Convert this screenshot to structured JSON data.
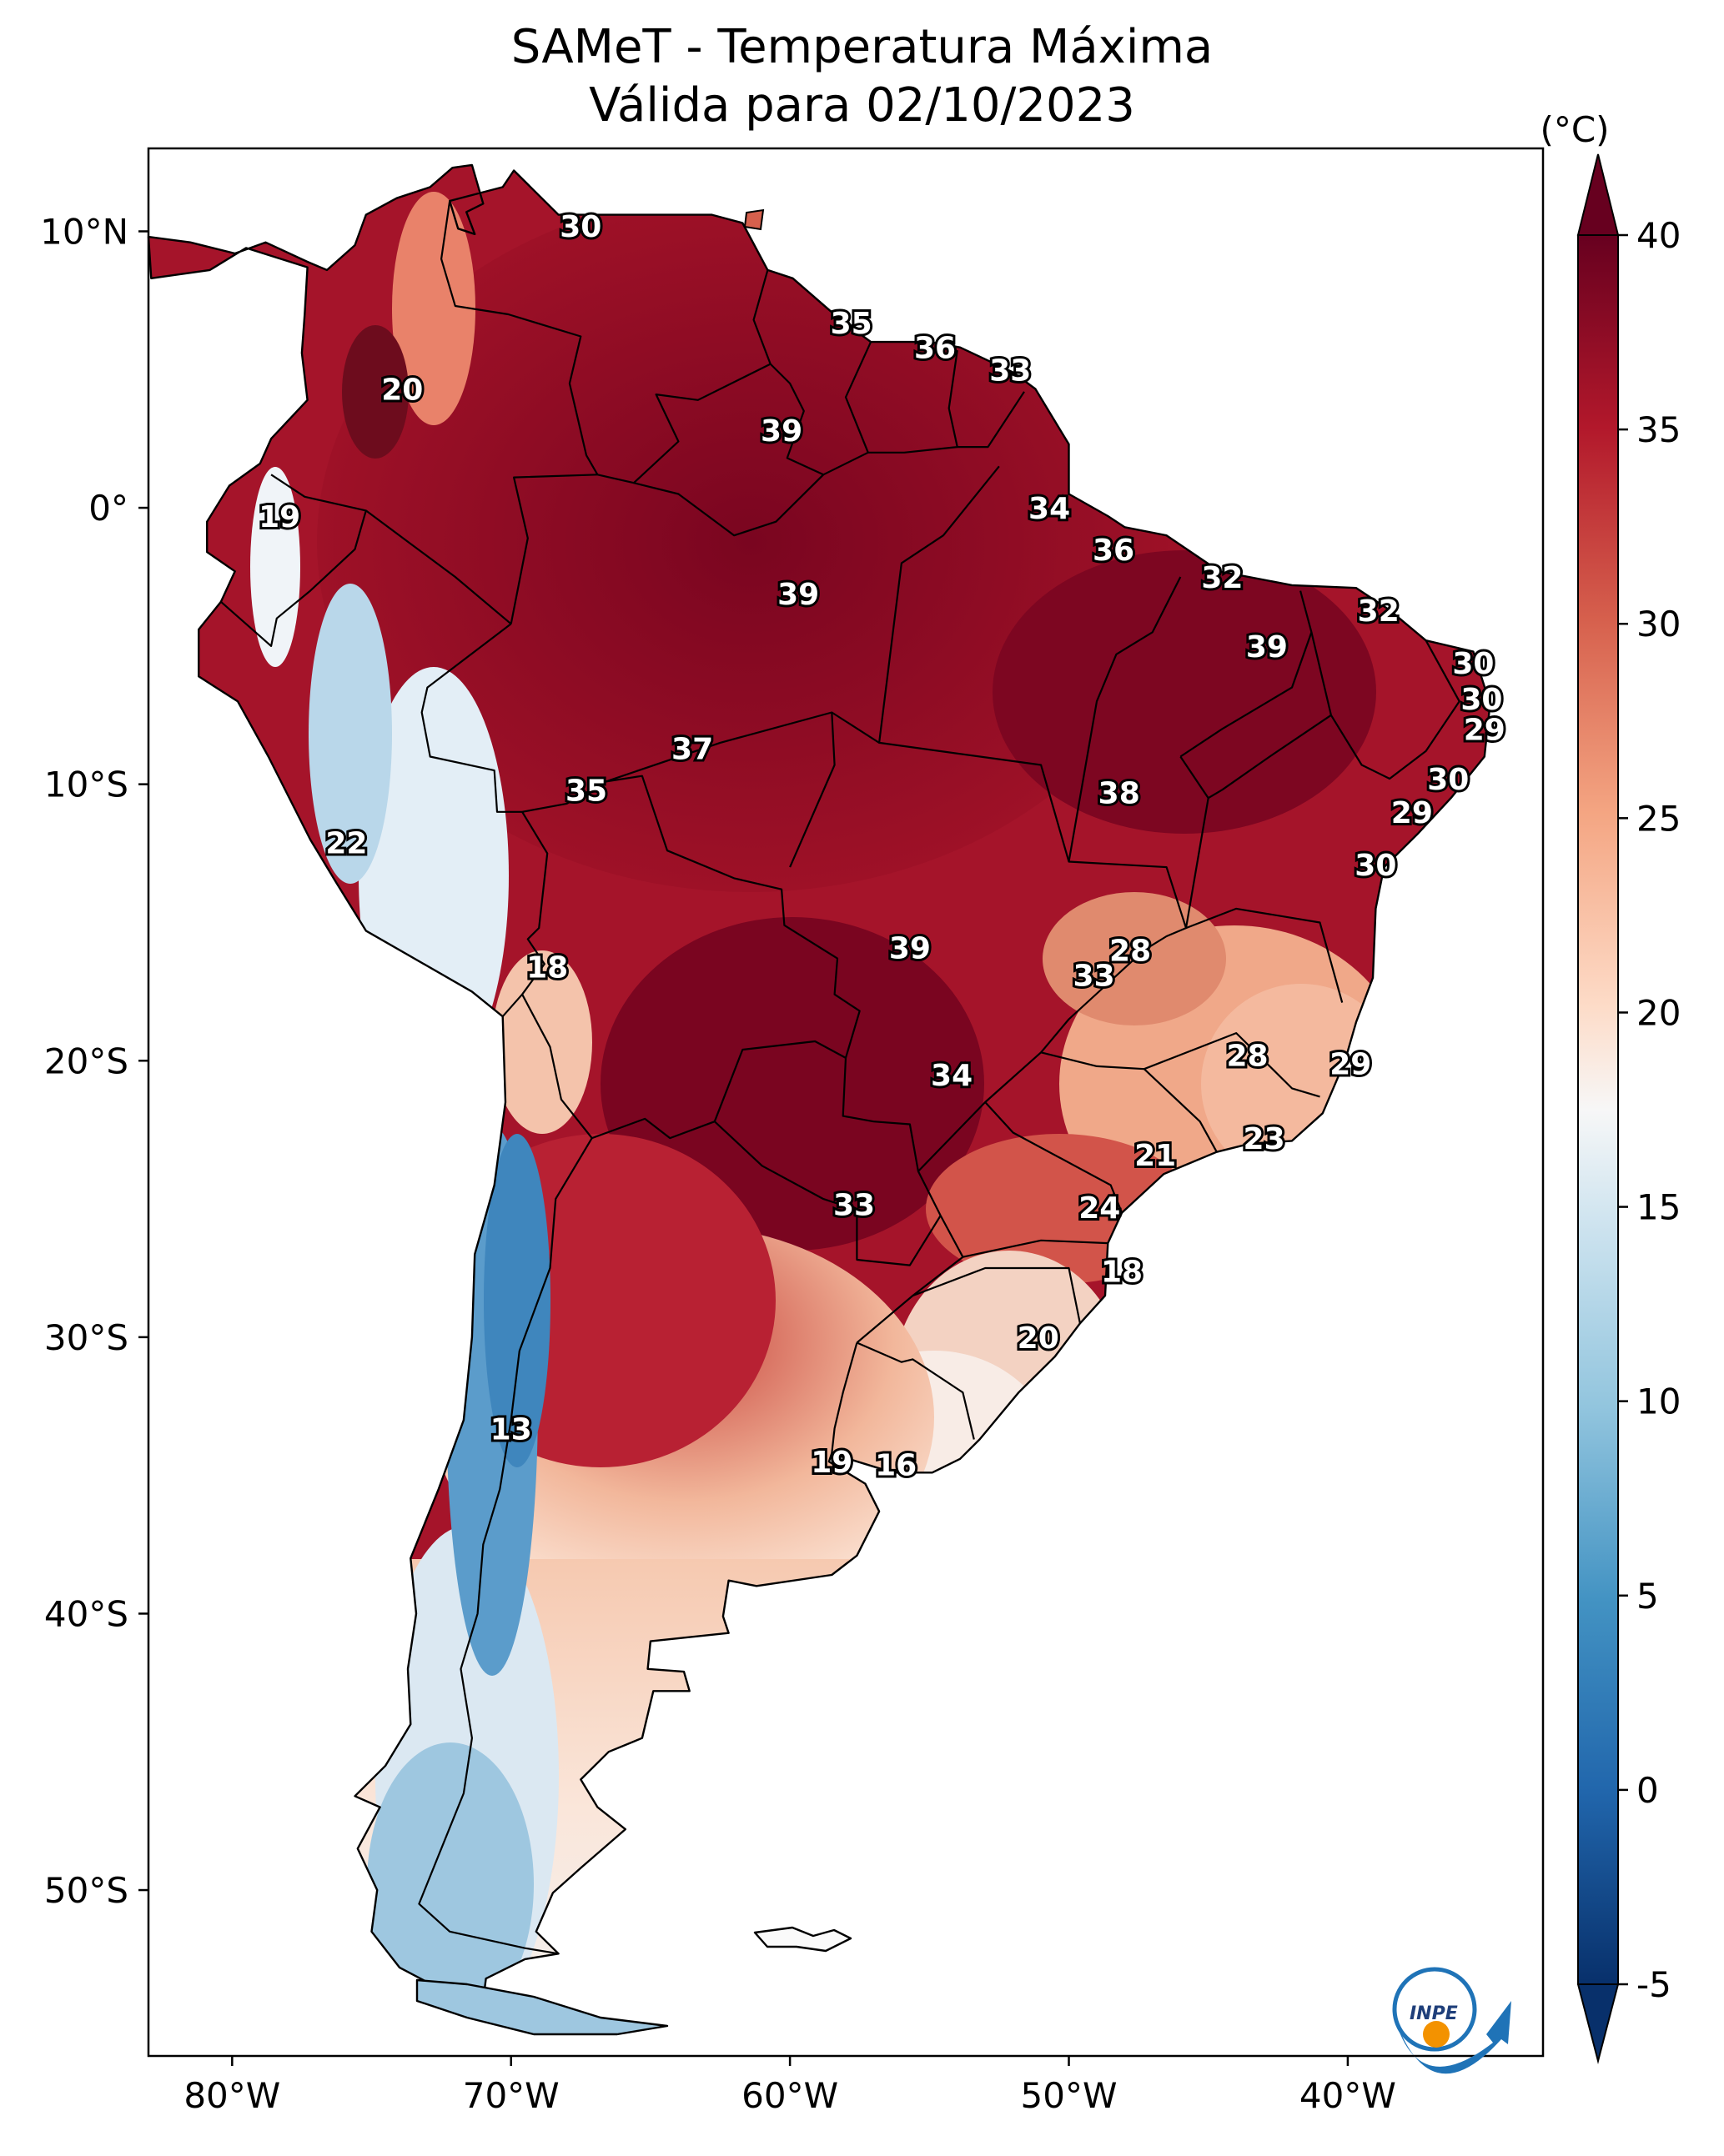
{
  "title": {
    "line1": "SAMeT - Temperatura Máxima",
    "line2": "Válida para 02/10/2023"
  },
  "axes": {
    "x_ticks": [
      {
        "lon": -80,
        "label": "80°W"
      },
      {
        "lon": -70,
        "label": "70°W"
      },
      {
        "lon": -60,
        "label": "60°W"
      },
      {
        "lon": -50,
        "label": "50°W"
      },
      {
        "lon": -40,
        "label": "40°W"
      }
    ],
    "y_ticks": [
      {
        "lat": 10,
        "label": "10°N"
      },
      {
        "lat": 0,
        "label": "0°"
      },
      {
        "lat": -10,
        "label": "10°S"
      },
      {
        "lat": -20,
        "label": "20°S"
      },
      {
        "lat": -30,
        "label": "30°S"
      },
      {
        "lat": -40,
        "label": "40°S"
      },
      {
        "lat": -50,
        "label": "50°S"
      }
    ],
    "lon_range": [
      -83,
      -33
    ],
    "lat_range": [
      -56,
      13
    ]
  },
  "colorbar": {
    "unit": "(°C)",
    "range": [
      -5,
      40
    ],
    "extend": "both",
    "ticks": [
      {
        "value": 40,
        "label": "40"
      },
      {
        "value": 35,
        "label": "35"
      },
      {
        "value": 30,
        "label": "30"
      },
      {
        "value": 25,
        "label": "25"
      },
      {
        "value": 20,
        "label": "20"
      },
      {
        "value": 15,
        "label": "15"
      },
      {
        "value": 10,
        "label": "10"
      },
      {
        "value": 5,
        "label": "5"
      },
      {
        "value": 0,
        "label": "0"
      },
      {
        "value": -5,
        "label": "-5"
      }
    ],
    "colors": [
      "#08306b",
      "#2166ac",
      "#4393c3",
      "#92c5de",
      "#d1e5f0",
      "#f7f7f7",
      "#fddbc7",
      "#f4a582",
      "#d6604d",
      "#b2182b",
      "#67001f"
    ]
  },
  "logo": {
    "text": "INPE"
  },
  "value_labels": [
    {
      "lon": -67.5,
      "lat": 10.2,
      "text": "30"
    },
    {
      "lon": -57.8,
      "lat": 6.7,
      "text": "35"
    },
    {
      "lon": -54.8,
      "lat": 5.8,
      "text": "36"
    },
    {
      "lon": -52.1,
      "lat": 5.0,
      "text": "33"
    },
    {
      "lon": -73.9,
      "lat": 4.3,
      "text": "20"
    },
    {
      "lon": -60.3,
      "lat": 2.8,
      "text": "39"
    },
    {
      "lon": -50.7,
      "lat": 0.0,
      "text": "34"
    },
    {
      "lon": -78.3,
      "lat": -0.3,
      "text": "19"
    },
    {
      "lon": -48.4,
      "lat": -1.5,
      "text": "36"
    },
    {
      "lon": -44.5,
      "lat": -2.5,
      "text": "32"
    },
    {
      "lon": -59.7,
      "lat": -3.1,
      "text": "39"
    },
    {
      "lon": -38.9,
      "lat": -3.7,
      "text": "32"
    },
    {
      "lon": -42.9,
      "lat": -5.0,
      "text": "39"
    },
    {
      "lon": -35.5,
      "lat": -5.6,
      "text": "30"
    },
    {
      "lon": -35.2,
      "lat": -6.9,
      "text": "30"
    },
    {
      "lon": -35.1,
      "lat": -8.0,
      "text": "29"
    },
    {
      "lon": -63.5,
      "lat": -8.7,
      "text": "37"
    },
    {
      "lon": -36.4,
      "lat": -9.8,
      "text": "30"
    },
    {
      "lon": -67.3,
      "lat": -10.2,
      "text": "35"
    },
    {
      "lon": -48.2,
      "lat": -10.3,
      "text": "38"
    },
    {
      "lon": -37.7,
      "lat": -11.0,
      "text": "29"
    },
    {
      "lon": -75.9,
      "lat": -12.1,
      "text": "22"
    },
    {
      "lon": -39.0,
      "lat": -12.9,
      "text": "30"
    },
    {
      "lon": -55.7,
      "lat": -15.9,
      "text": "39"
    },
    {
      "lon": -47.8,
      "lat": -16.0,
      "text": "28"
    },
    {
      "lon": -49.1,
      "lat": -16.9,
      "text": "33"
    },
    {
      "lon": -68.7,
      "lat": -16.6,
      "text": "18"
    },
    {
      "lon": -43.6,
      "lat": -19.8,
      "text": "28"
    },
    {
      "lon": -39.9,
      "lat": -20.1,
      "text": "29"
    },
    {
      "lon": -54.2,
      "lat": -20.5,
      "text": "34"
    },
    {
      "lon": -43.0,
      "lat": -22.8,
      "text": "23"
    },
    {
      "lon": -46.9,
      "lat": -23.4,
      "text": "21"
    },
    {
      "lon": -57.7,
      "lat": -25.2,
      "text": "33"
    },
    {
      "lon": -48.9,
      "lat": -25.3,
      "text": "24"
    },
    {
      "lon": -48.1,
      "lat": -27.6,
      "text": "18"
    },
    {
      "lon": -51.1,
      "lat": -30.0,
      "text": "20"
    },
    {
      "lon": -70.0,
      "lat": -33.3,
      "text": "13"
    },
    {
      "lon": -58.5,
      "lat": -34.5,
      "text": "19"
    },
    {
      "lon": -56.2,
      "lat": -34.6,
      "text": "16"
    }
  ]
}
